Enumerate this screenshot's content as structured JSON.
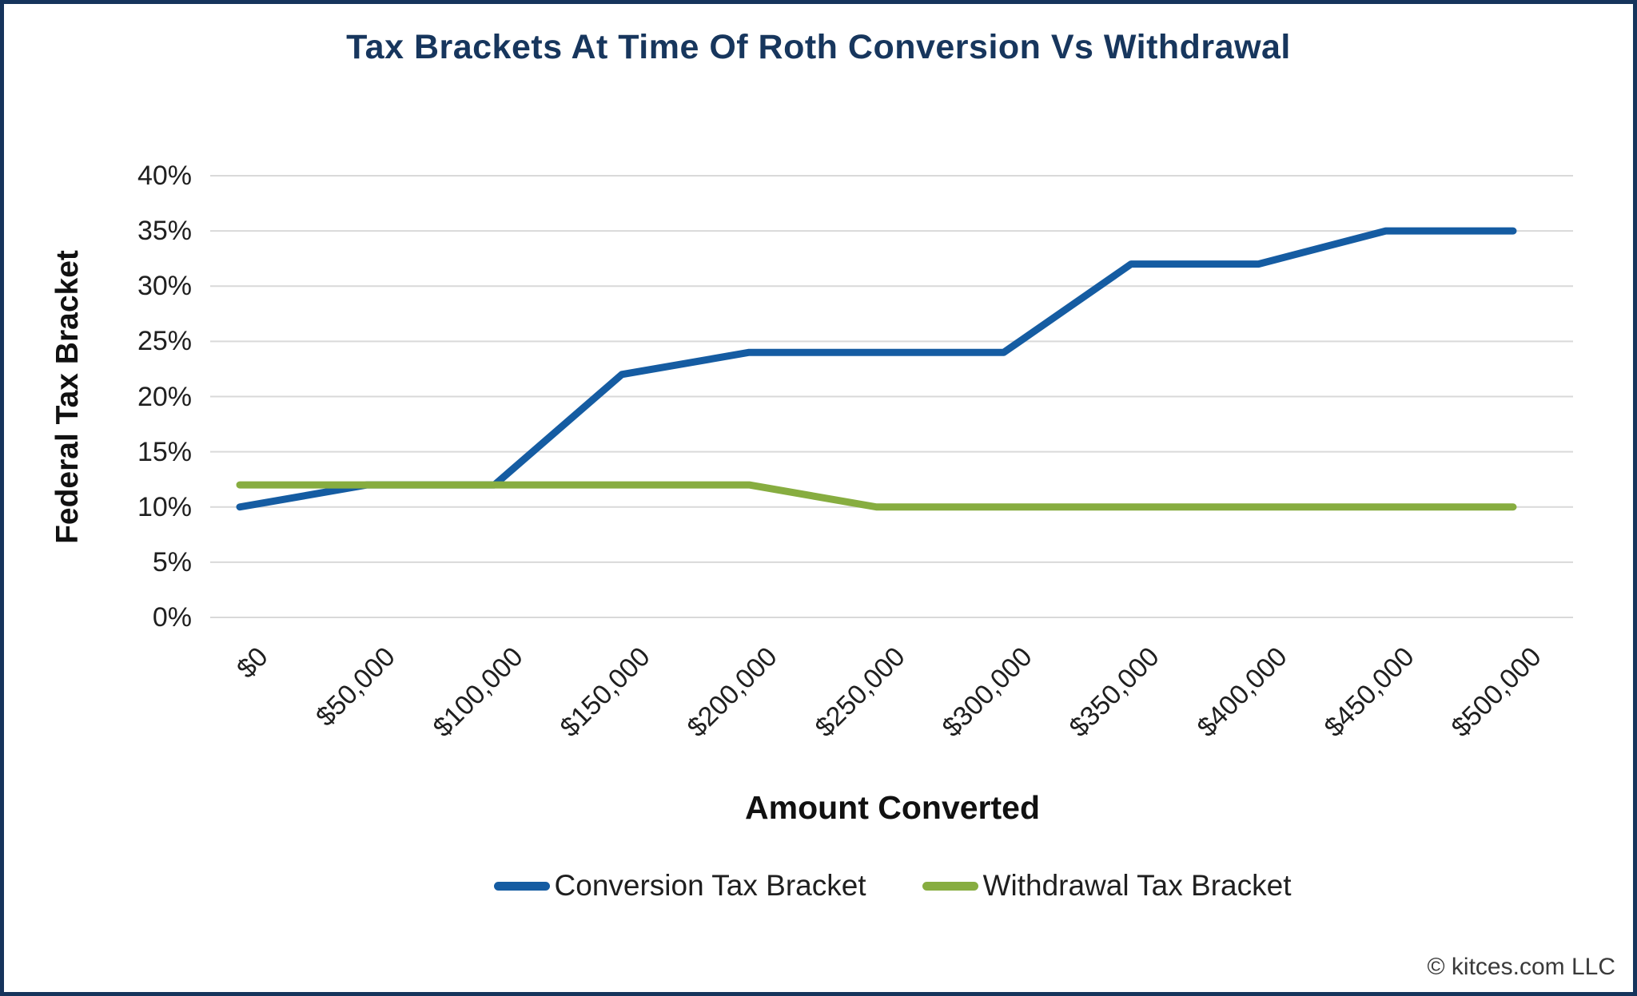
{
  "frame": {
    "border_color": "#16345C",
    "background_color": "#FFFFFF"
  },
  "chart": {
    "title_color": "#17365D"
  },
  "chart_data": {
    "type": "line",
    "title": "Tax Brackets At Time Of Roth Conversion Vs Withdrawal",
    "xlabel": "Amount Converted",
    "ylabel": "Federal Tax Bracket",
    "categories": [
      "$0",
      "$50,000",
      "$100,000",
      "$150,000",
      "$200,000",
      "$250,000",
      "$300,000",
      "$350,000",
      "$400,000",
      "$450,000",
      "$500,000"
    ],
    "series": [
      {
        "name": "Conversion Tax Bracket",
        "color": "#155CA2",
        "values": [
          10,
          12,
          12,
          22,
          24,
          24,
          24,
          32,
          32,
          35,
          35
        ]
      },
      {
        "name": "Withdrawal Tax Bracket",
        "color": "#87AD40",
        "values": [
          12,
          12,
          12,
          12,
          12,
          10,
          10,
          10,
          10,
          10,
          10
        ]
      }
    ],
    "y_ticks": [
      "40%",
      "35%",
      "30%",
      "25%",
      "20%",
      "15%",
      "10%",
      "5%",
      "0%"
    ],
    "y_tick_values": [
      40,
      35,
      30,
      25,
      20,
      15,
      10,
      5,
      0
    ],
    "ylim": [
      0,
      40
    ],
    "unit": "percent",
    "grid": "horizontal",
    "gridline_color": "#D9D9D9",
    "x_tick_rotation": -45,
    "legend_position": "bottom"
  },
  "footer": {
    "copyright": "© kitces.com LLC"
  }
}
